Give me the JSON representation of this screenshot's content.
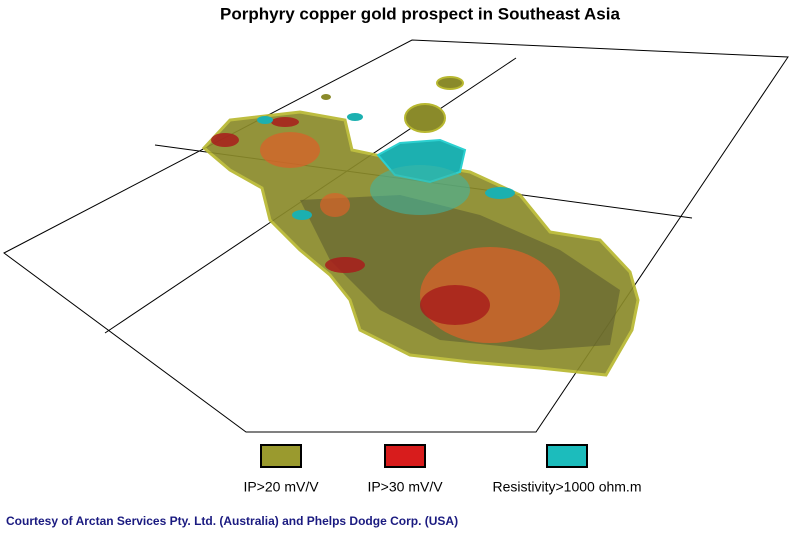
{
  "title": "Porphyry copper gold prospect in Southeast Asia",
  "legend": [
    {
      "label": "IP>20 mV/V",
      "color": "#9a9a2e"
    },
    {
      "label": "IP>30 mV/V",
      "color": "#d81c1c"
    },
    {
      "label": "Resistivity>1000 ohm.m",
      "color": "#1cbcbc"
    }
  ],
  "credit": "Courtesy of Arctan Services Pty. Ltd. (Australia) and Phelps Dodge Corp. (USA)"
}
